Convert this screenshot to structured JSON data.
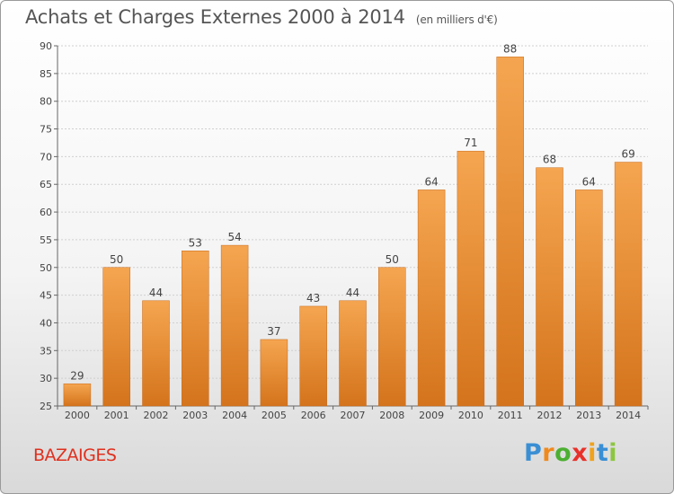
{
  "chart_data": {
    "type": "bar",
    "title": "Achats et Charges Externes 2000 à 2014",
    "subtitle": "(en milliers d'€)",
    "categories": [
      "2000",
      "2001",
      "2002",
      "2003",
      "2004",
      "2005",
      "2006",
      "2007",
      "2008",
      "2009",
      "2010",
      "2011",
      "2012",
      "2013",
      "2014"
    ],
    "values": [
      29,
      50,
      44,
      53,
      54,
      37,
      43,
      44,
      50,
      64,
      71,
      88,
      68,
      64,
      69
    ],
    "ylim": [
      25,
      90
    ],
    "yticks": [
      25,
      30,
      35,
      40,
      45,
      50,
      55,
      60,
      65,
      70,
      75,
      80,
      85,
      90
    ],
    "grid": true,
    "bar_color_top": "#f5a550",
    "bar_color_bottom": "#d4741c"
  },
  "commune": "BAZAIGES",
  "logo": {
    "letters": [
      "P",
      "r",
      "o",
      "x",
      "i",
      "t",
      "i"
    ],
    "colors": [
      "#3a8fd4",
      "#f08a1c",
      "#4caf32",
      "#e8312a",
      "#f0a21c",
      "#3a8fd4",
      "#8cc63f"
    ]
  }
}
